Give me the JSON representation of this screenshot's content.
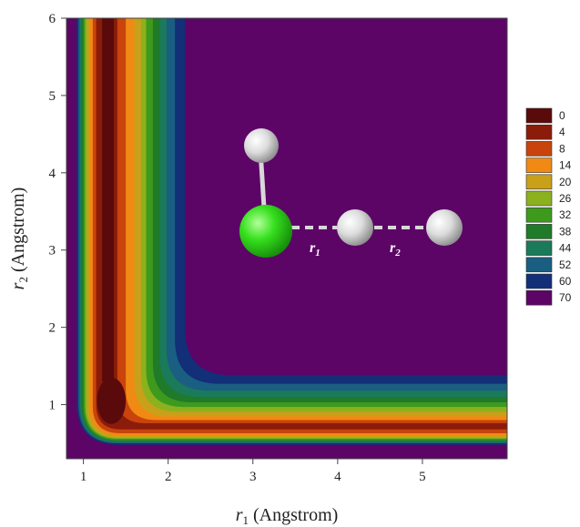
{
  "chart_data": {
    "type": "heatmap",
    "title": "",
    "xlabel": {
      "symbol": "r",
      "sub": "1",
      "rest": " (Angstrom)"
    },
    "ylabel": {
      "symbol": "r",
      "sub": "2",
      "rest": " (Angstrom)"
    },
    "xlim": [
      0.8,
      6.0
    ],
    "ylim": [
      0.3,
      6.0
    ],
    "xticks": [
      "1",
      "2",
      "3",
      "4",
      "5"
    ],
    "xtick_values": [
      1,
      2,
      3,
      4,
      5
    ],
    "yticks": [
      "1",
      "2",
      "3",
      "4",
      "5",
      "6"
    ],
    "ytick_values": [
      1,
      2,
      3,
      4,
      5,
      6
    ],
    "legend_position": "right",
    "levels": [
      {
        "label": "0",
        "color": "#5a0a0a"
      },
      {
        "label": "4",
        "color": "#8b1c0a"
      },
      {
        "label": "8",
        "color": "#c8440c"
      },
      {
        "label": "14",
        "color": "#f08a14"
      },
      {
        "label": "20",
        "color": "#c9a01a"
      },
      {
        "label": "26",
        "color": "#8cb11e"
      },
      {
        "label": "32",
        "color": "#3e9a1c"
      },
      {
        "label": "38",
        "color": "#1f7a2a"
      },
      {
        "label": "44",
        "color": "#1a7a5a"
      },
      {
        "label": "52",
        "color": "#1a5e82"
      },
      {
        "label": "60",
        "color": "#122f78"
      },
      {
        "label": "70",
        "color": "#5c0566"
      }
    ],
    "annotations": {
      "bond1": {
        "symbol": "r",
        "sub": "1"
      },
      "bond2": {
        "symbol": "r",
        "sub": "2"
      }
    }
  }
}
